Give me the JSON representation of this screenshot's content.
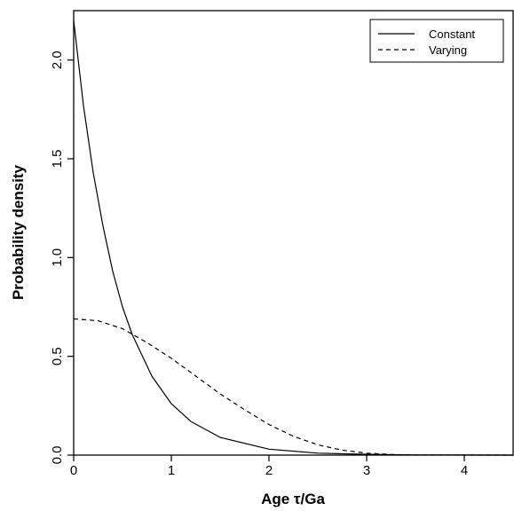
{
  "chart_data": {
    "type": "line",
    "title": "",
    "xlabel": "Age τ/Ga",
    "ylabel": "Probability density",
    "xlim": [
      0,
      4.5
    ],
    "ylim": [
      0,
      2.25
    ],
    "x_ticks": [
      "0",
      "1",
      "2",
      "3",
      "4"
    ],
    "y_ticks": [
      "0.0",
      "0.5",
      "1.0",
      "1.5",
      "2.0"
    ],
    "grid": false,
    "legend_position": "top-right",
    "series": [
      {
        "name": "Constant",
        "style": "solid",
        "x": [
          0,
          0.1,
          0.2,
          0.3,
          0.4,
          0.5,
          0.6,
          0.8,
          1.0,
          1.2,
          1.5,
          2.0,
          2.5,
          3.0,
          3.5,
          4.0,
          4.5
        ],
        "y": [
          2.2,
          1.77,
          1.43,
          1.16,
          0.93,
          0.75,
          0.61,
          0.4,
          0.26,
          0.17,
          0.09,
          0.03,
          0.01,
          0.004,
          0.001,
          0.0004,
          0.0001
        ]
      },
      {
        "name": "Varying",
        "style": "dashed",
        "x": [
          0,
          0.25,
          0.5,
          0.75,
          1.0,
          1.25,
          1.5,
          1.75,
          2.0,
          2.25,
          2.5,
          2.75,
          3.0,
          3.25,
          3.5,
          4.0,
          4.5
        ],
        "y": [
          0.69,
          0.68,
          0.64,
          0.57,
          0.49,
          0.4,
          0.31,
          0.23,
          0.155,
          0.095,
          0.052,
          0.025,
          0.01,
          0.003,
          0.001,
          0.0,
          0.0
        ]
      }
    ]
  }
}
